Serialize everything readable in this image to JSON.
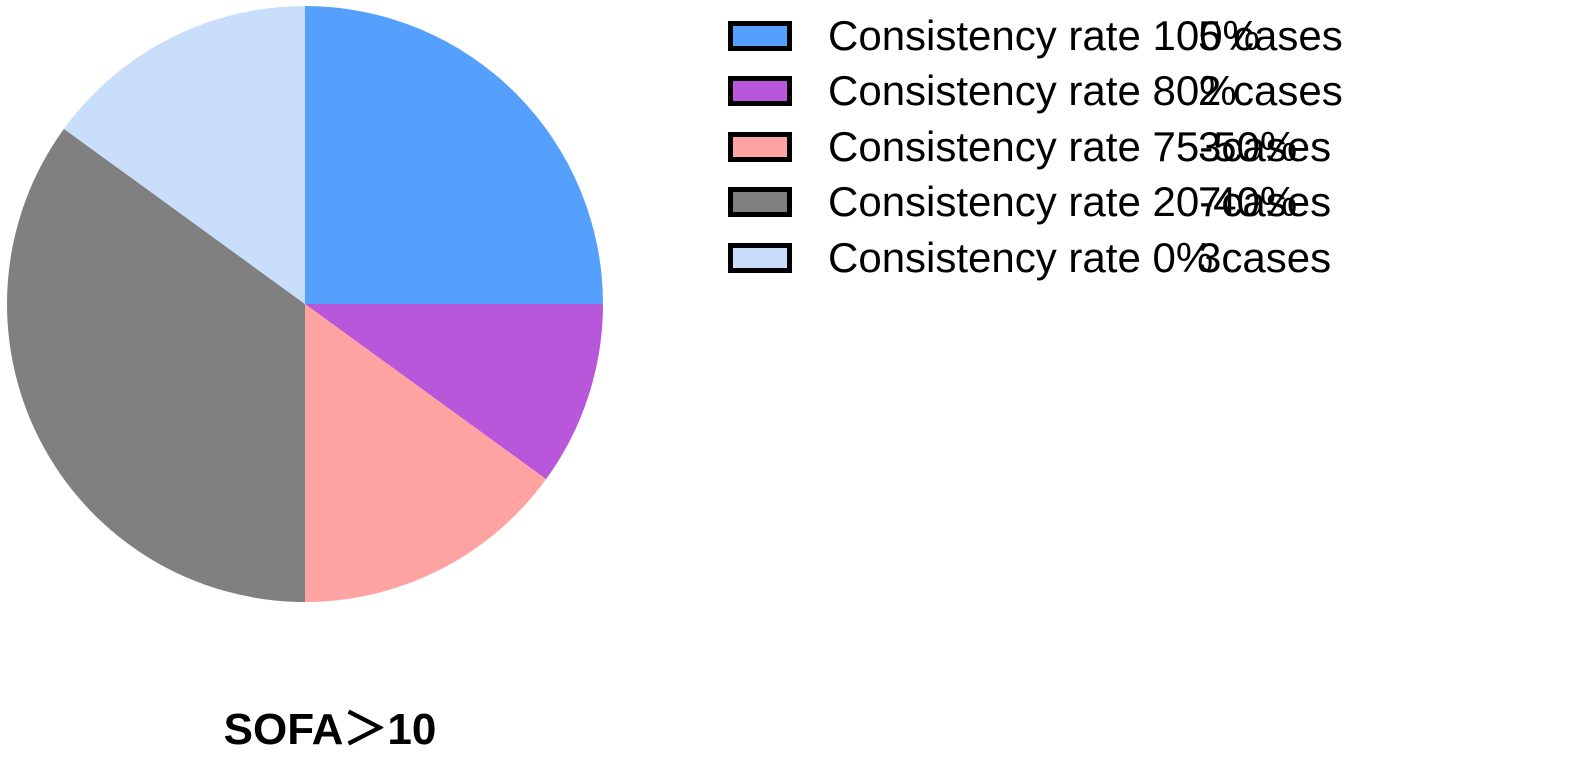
{
  "chart_data": {
    "type": "pie",
    "title": "SOFA＞10",
    "start_angle_deg": 0,
    "direction": "clockwise",
    "legend_position": "right",
    "slices": [
      {
        "label": "Consistency rate 100%",
        "count_label": "5 cases",
        "value": 5,
        "color": "#55A0FC"
      },
      {
        "label": "Consistency rate 80%",
        "count_label": "2 cases",
        "value": 2,
        "color": "#B857D9"
      },
      {
        "label": "Consistency rate 75-50%",
        "count_label": "3cases",
        "value": 3,
        "color": "#FFA2A2"
      },
      {
        "label": "Consistency rate 20-40%",
        "count_label": "7cases",
        "value": 7,
        "color": "#808080"
      },
      {
        "label": "Consistency rate 0%",
        "count_label": "3cases",
        "value": 3,
        "color": "#C8DEFA"
      }
    ]
  }
}
